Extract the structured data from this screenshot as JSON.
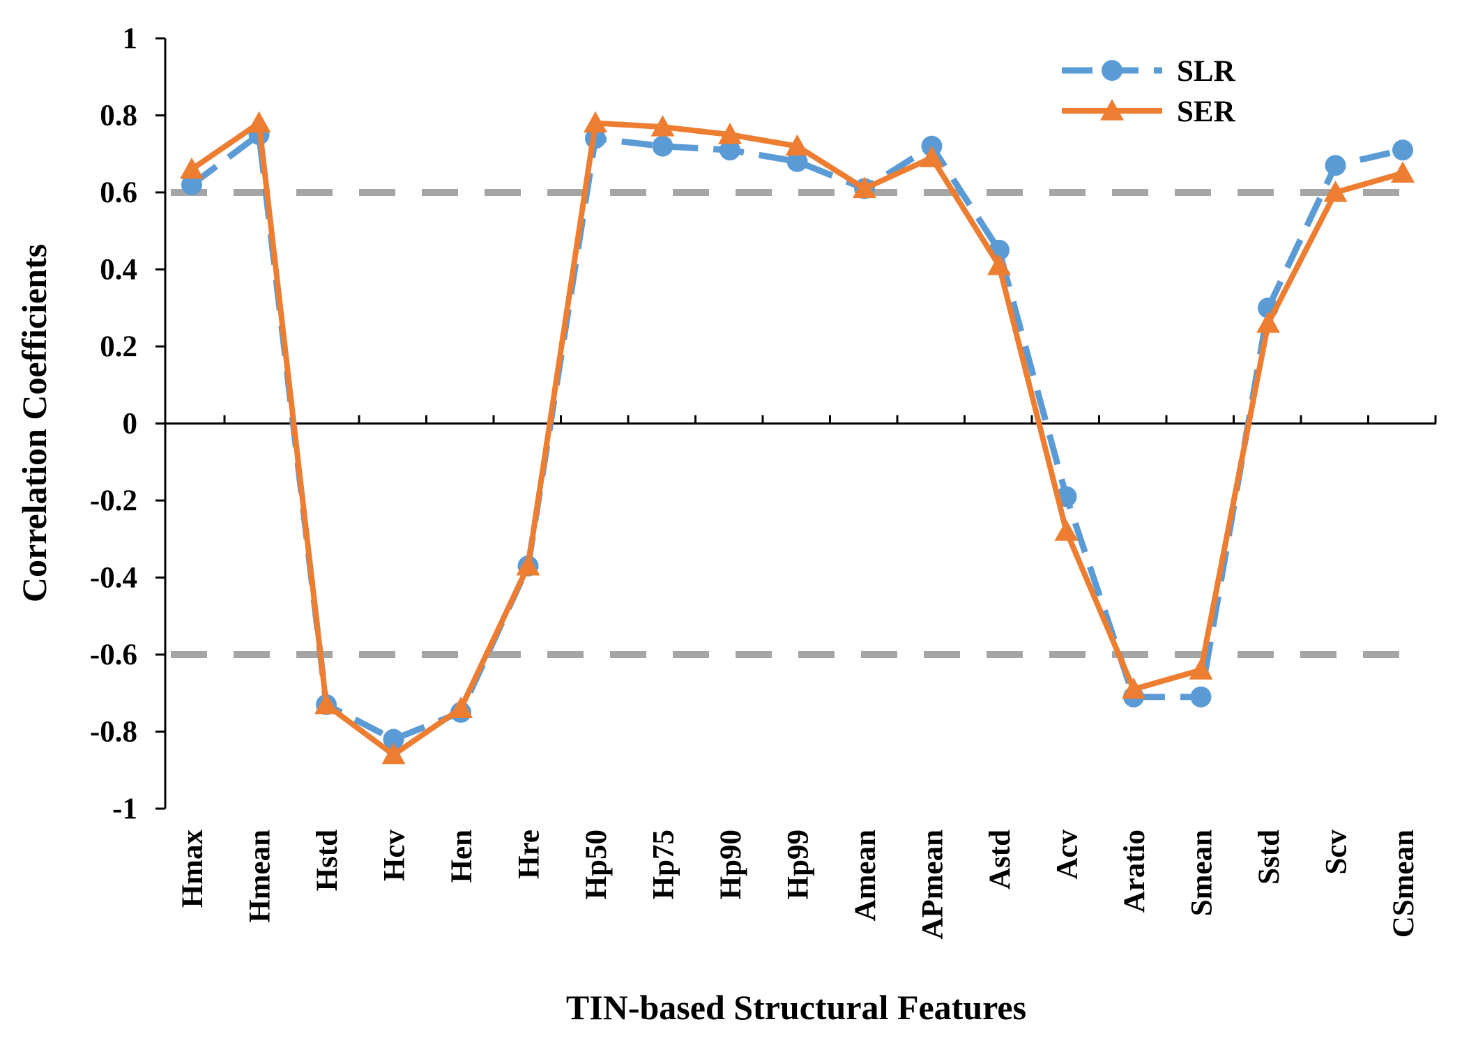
{
  "chart_data": {
    "type": "line",
    "xlabel": "TIN-based Structural Features",
    "ylabel": "Correlation Coefficients",
    "ylim": [
      -1,
      1
    ],
    "yticks": [
      1,
      0.8,
      0.6,
      0.4,
      0.2,
      0,
      -0.2,
      -0.4,
      -0.6,
      -0.8,
      -1
    ],
    "ytick_labels": [
      "1",
      "0.8",
      "0.6",
      "0.4",
      "0.2",
      "0",
      "-0.2",
      "-0.4",
      "-0.6",
      "-0.8",
      "-1"
    ],
    "categories": [
      "Hmax",
      "Hmean",
      "Hstd",
      "Hcv",
      "Hen",
      "Hre",
      "Hp50",
      "Hp75",
      "Hp90",
      "Hp99",
      "Amean",
      "APmean",
      "Astd",
      "Acv",
      "Aratio",
      "Smean",
      "Sstd",
      "Scv",
      "CSmean"
    ],
    "series": [
      {
        "name": "SLR",
        "color": "#5B9BD5",
        "line_style": "dashed",
        "marker": "circle",
        "values": [
          0.62,
          0.75,
          -0.73,
          -0.82,
          -0.75,
          -0.37,
          0.74,
          0.72,
          0.71,
          0.68,
          0.61,
          0.72,
          0.45,
          -0.19,
          -0.71,
          -0.71,
          0.3,
          0.67,
          0.71
        ]
      },
      {
        "name": "SER",
        "color": "#ED7D31",
        "line_style": "solid",
        "marker": "triangle",
        "values": [
          0.66,
          0.78,
          -0.73,
          -0.86,
          -0.74,
          -0.37,
          0.78,
          0.77,
          0.75,
          0.72,
          0.61,
          0.69,
          0.41,
          -0.28,
          -0.69,
          -0.64,
          0.26,
          0.6,
          0.65
        ]
      }
    ],
    "reference_lines": [
      {
        "y": 0.6,
        "color": "#A5A5A5",
        "style": "dashed"
      },
      {
        "y": -0.6,
        "color": "#A5A5A5",
        "style": "dashed"
      }
    ],
    "legend_position": "top-right"
  }
}
